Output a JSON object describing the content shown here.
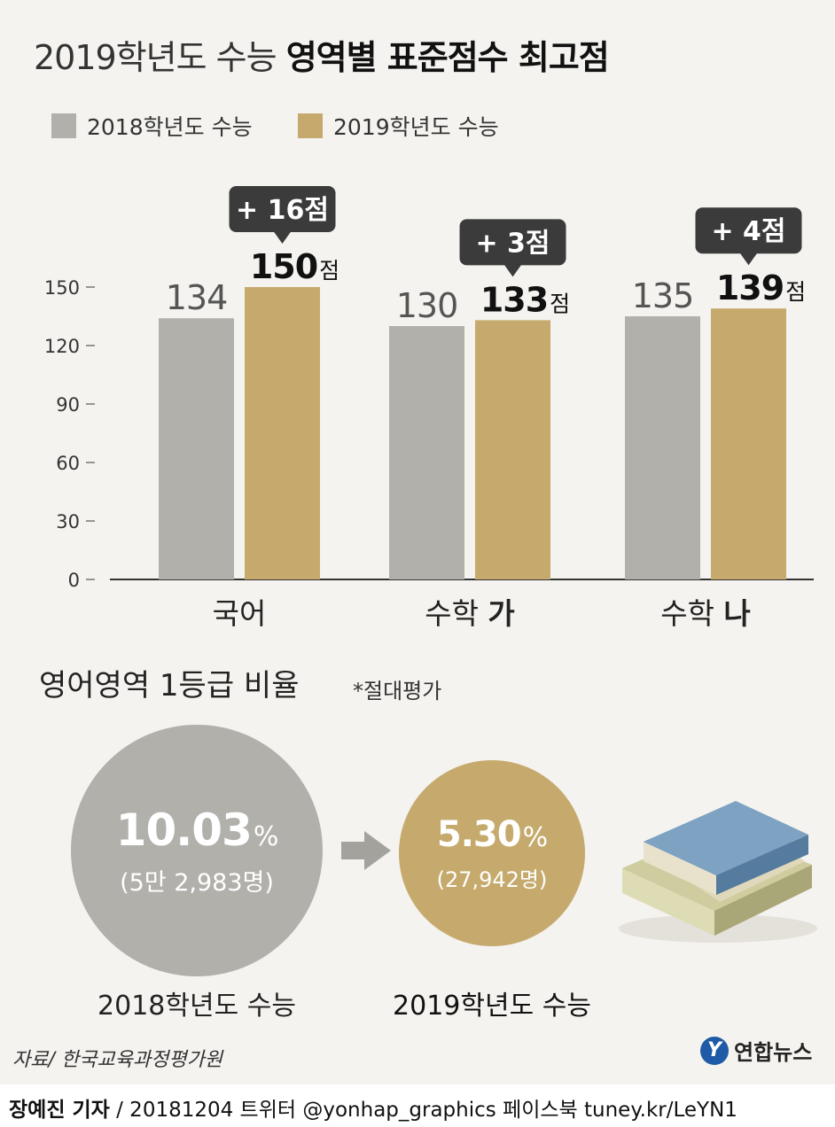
{
  "title": {
    "light": "2019학년도 수능",
    "bold": "영역별 표준점수 최고점"
  },
  "legend": [
    {
      "label": "2018학년도 수능",
      "color": "#b1b0ab"
    },
    {
      "label": "2019학년도 수능",
      "color": "#c6aa6d"
    }
  ],
  "chart_data": {
    "type": "bar",
    "categories": [
      "국어",
      "수학 가",
      "수학 나"
    ],
    "category_parts": [
      {
        "light": "국어",
        "bold": ""
      },
      {
        "light": "수학 ",
        "bold": "가"
      },
      {
        "light": "수학 ",
        "bold": "나"
      }
    ],
    "series": [
      {
        "name": "2018학년도 수능",
        "values": [
          134,
          130,
          135
        ],
        "color": "#b1b0ab"
      },
      {
        "name": "2019학년도 수능",
        "values": [
          150,
          133,
          139
        ],
        "color": "#c6aa6d"
      }
    ],
    "value_labels_2018": [
      "134",
      "130",
      "135"
    ],
    "value_labels_2019": [
      "150",
      "133",
      "139"
    ],
    "value_unit": "점",
    "differences": [
      "+ 16점",
      "+ 3점",
      "+ 4점"
    ],
    "y_ticks": [
      0,
      30,
      60,
      90,
      120,
      150
    ],
    "ylim": [
      0,
      150
    ]
  },
  "english": {
    "title": "영어영역 1등급 비율",
    "note": "*절대평가",
    "y2018": {
      "pct": "10.03",
      "unit": "%",
      "count": "(5만 2,983명)",
      "caption": "2018학년도 수능"
    },
    "y2019": {
      "pct": "5.30",
      "unit": "%",
      "count": "(27,942명)",
      "caption": "2019학년도 수능"
    }
  },
  "source": "자료/ 한국교육과정평가원",
  "logo": {
    "mark": "Y",
    "text": "연합뉴스"
  },
  "credit": {
    "reporter": "장예진 기자",
    "rest": " / 20181204 트위터 @yonhap_graphics  페이스북 tuney.kr/LeYN1"
  },
  "colors": {
    "callout": "#3b3b3b",
    "axis": "#333333",
    "book_blue": "#6f93b3",
    "book_green": "#c9c79a"
  }
}
